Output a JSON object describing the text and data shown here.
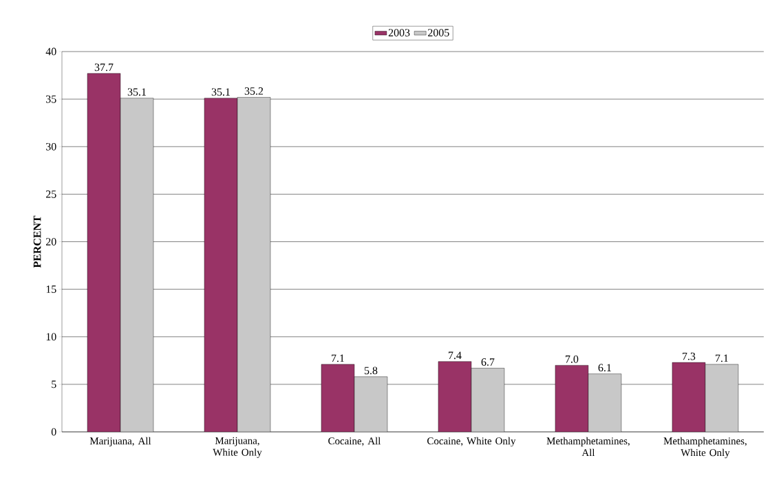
{
  "chart_data": {
    "type": "bar",
    "ylabel": "PERCENT",
    "categories": [
      "Marijuana, All",
      "Marijuana, White Only",
      "Cocaine, All",
      "Cocaine, White Only",
      "Methamphetamines, All",
      "Methamphetamines, White Only"
    ],
    "series": [
      {
        "name": "2003",
        "color": "#993366",
        "values": [
          37.7,
          35.1,
          7.1,
          7.4,
          7.0,
          7.3
        ],
        "value_labels": [
          "37.7",
          "35.1",
          "7.1",
          "7.4",
          "7.0",
          "7.3"
        ]
      },
      {
        "name": "2005",
        "color": "#c8c8c8",
        "values": [
          35.1,
          35.2,
          5.8,
          6.7,
          6.1,
          7.1
        ],
        "value_labels": [
          "35.1",
          "35.2",
          "5.8",
          "6.7",
          "6.1",
          "7.1"
        ]
      }
    ],
    "ylim": [
      0,
      40
    ],
    "yticks": [
      0,
      5,
      10,
      15,
      20,
      25,
      30,
      35,
      40
    ],
    "grid": "y",
    "legend": "top"
  }
}
